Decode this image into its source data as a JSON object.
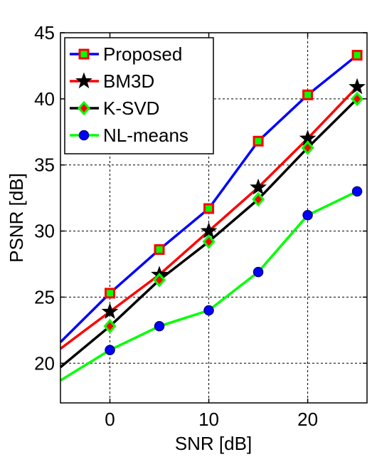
{
  "chart_data": {
    "type": "line",
    "title": "",
    "xlabel": "SNR [dB]",
    "ylabel": "PSNR [dB]",
    "xlim": [
      -5,
      26
    ],
    "ylim": [
      17,
      45
    ],
    "xticks": [
      0,
      10,
      20
    ],
    "yticks": [
      20,
      25,
      30,
      35,
      40,
      45
    ],
    "grid": true,
    "legend_position": "top-left",
    "series": [
      {
        "name": "Proposed",
        "line_color": "#0000ff",
        "marker": "square",
        "marker_edge": "#ff0000",
        "marker_fill": "#00ff00",
        "x": [
          -5,
          0,
          5,
          10,
          15,
          20,
          25
        ],
        "y": [
          21.6,
          25.3,
          28.6,
          31.7,
          36.8,
          40.3,
          43.3
        ]
      },
      {
        "name": "BM3D",
        "line_color": "#ff0000",
        "marker": "star",
        "marker_edge": "#000000",
        "marker_fill": "#000000",
        "x": [
          -5,
          0,
          5,
          10,
          15,
          20,
          25
        ],
        "y": [
          21.1,
          23.9,
          26.7,
          30.0,
          33.3,
          37.0,
          40.9
        ]
      },
      {
        "name": "K-SVD",
        "line_color": "#000000",
        "marker": "diamond",
        "marker_edge": "#00ff00",
        "marker_fill": "#ff0000",
        "x": [
          -5,
          0,
          5,
          10,
          15,
          20,
          25
        ],
        "y": [
          19.7,
          22.8,
          26.3,
          29.2,
          32.4,
          36.3,
          40.0
        ]
      },
      {
        "name": "NL-means",
        "line_color": "#00ff00",
        "marker": "circle",
        "marker_edge": "#000080",
        "marker_fill": "#0000ff",
        "x": [
          -5,
          0,
          5,
          10,
          15,
          20,
          25
        ],
        "y": [
          18.7,
          21.0,
          22.8,
          24.0,
          26.9,
          31.2,
          33.0
        ]
      }
    ]
  }
}
